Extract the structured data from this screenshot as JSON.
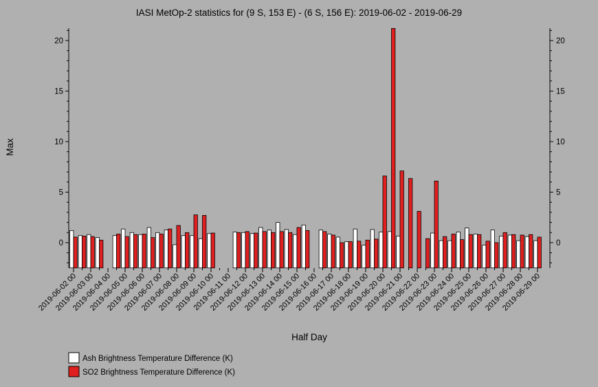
{
  "chart_data": {
    "type": "bar",
    "title": "IASI MetOp-2 statistics for (9 S, 153 E) - (6 S, 156 E): 2019-06-02 - 2019-06-29",
    "xlabel": "Half Day",
    "ylabel": "Max",
    "ylim": [
      -2.5,
      21.2
    ],
    "yticks": [
      0,
      5,
      10,
      15,
      20
    ],
    "grid": false,
    "legend": "bottom-left",
    "categories": [
      "2019-06-02 00",
      "2019-06-02 12",
      "2019-06-03 00",
      "2019-06-03 12",
      "2019-06-04 00",
      "2019-06-04 12",
      "2019-06-05 00",
      "2019-06-05 12",
      "2019-06-06 00",
      "2019-06-06 12",
      "2019-06-07 00",
      "2019-06-07 12",
      "2019-06-08 00",
      "2019-06-08 12",
      "2019-06-09 00",
      "2019-06-09 12",
      "2019-06-10 00",
      "2019-06-10 12",
      "2019-06-11 00",
      "2019-06-11 12",
      "2019-06-12 00",
      "2019-06-12 12",
      "2019-06-13 00",
      "2019-06-13 12",
      "2019-06-14 00",
      "2019-06-14 12",
      "2019-06-15 00",
      "2019-06-15 12",
      "2019-06-16 00",
      "2019-06-16 12",
      "2019-06-17 00",
      "2019-06-17 12",
      "2019-06-18 00",
      "2019-06-18 12",
      "2019-06-19 00",
      "2019-06-19 12",
      "2019-06-20 00",
      "2019-06-20 12",
      "2019-06-21 00",
      "2019-06-21 12",
      "2019-06-22 00",
      "2019-06-22 12",
      "2019-06-23 00",
      "2019-06-23 12",
      "2019-06-24 00",
      "2019-06-24 12",
      "2019-06-25 00",
      "2019-06-25 12",
      "2019-06-26 00",
      "2019-06-26 12",
      "2019-06-27 00",
      "2019-06-27 12",
      "2019-06-28 00",
      "2019-06-28 12",
      "2019-06-29 00"
    ],
    "ticklabels": [
      "2019-06-02 00",
      "2019-06-03 00",
      "2019-06-04 00",
      "2019-06-05 00",
      "2019-06-06 00",
      "2019-06-07 00",
      "2019-06-08 00",
      "2019-06-09 00",
      "2019-06-10 00",
      "2019-06-11 00",
      "2019-06-12 00",
      "2019-06-13 00",
      "2019-06-14 00",
      "2019-06-15 00",
      "2019-06-16 00",
      "2019-06-17 00",
      "2019-06-18 00",
      "2019-06-19 00",
      "2019-06-20 00",
      "2019-06-21 00",
      "2019-06-22 00",
      "2019-06-23 00",
      "2019-06-24 00",
      "2019-06-25 00",
      "2019-06-26 00",
      "2019-06-27 00",
      "2019-06-28 00",
      "2019-06-29 00"
    ],
    "series": [
      {
        "name": "Ash Brightness Temperature Difference (K)",
        "color": "#ffffff",
        "values": [
          1.2,
          0.7,
          0.8,
          0.5,
          null,
          0.7,
          1.35,
          1.0,
          0.8,
          1.5,
          1.0,
          1.25,
          -0.2,
          0.7,
          0.7,
          0.4,
          0.9,
          null,
          null,
          1.05,
          1.0,
          0.9,
          1.5,
          1.25,
          2.0,
          1.3,
          0.8,
          1.75,
          null,
          1.25,
          0.85,
          0.55,
          0.1,
          1.35,
          -0.25,
          1.3,
          1.05,
          1.1,
          0.65,
          null,
          null,
          null,
          0.95,
          0.2,
          0.2,
          1.05,
          1.45,
          0.85,
          -0.25,
          1.25,
          0.65,
          0.75,
          0.2,
          0.6,
          0.2
        ]
      },
      {
        "name": "SO2 Brightness Temperature Difference (K)",
        "color": "#e02020",
        "values": [
          0.55,
          0.65,
          0.6,
          0.25,
          null,
          0.85,
          0.6,
          0.8,
          0.85,
          0.5,
          0.85,
          1.35,
          1.7,
          1.0,
          2.75,
          2.7,
          0.95,
          null,
          null,
          1.0,
          1.1,
          0.95,
          1.1,
          1.0,
          1.1,
          1.0,
          1.5,
          1.2,
          null,
          1.1,
          0.75,
          0.0,
          0.1,
          0.15,
          0.25,
          0.35,
          6.6,
          21.2,
          7.1,
          6.35,
          3.1,
          0.4,
          6.1,
          0.6,
          0.85,
          0.3,
          0.8,
          0.8,
          0.15,
          0.0,
          1.0,
          0.8,
          0.75,
          0.8,
          0.55
        ]
      }
    ]
  }
}
